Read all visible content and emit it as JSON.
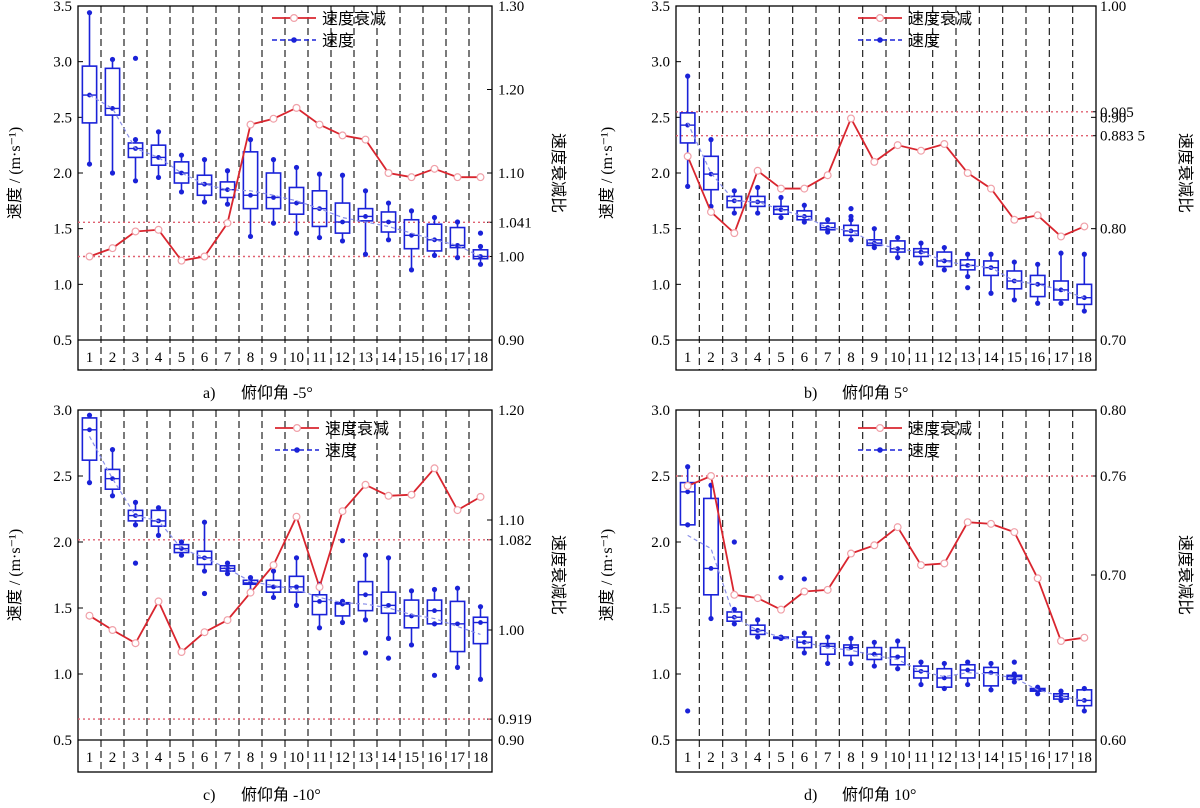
{
  "colors": {
    "decay": "#d9262f",
    "speed": "#1a22d8",
    "guide": "#e06070"
  },
  "legend": {
    "decay": "速度衰减",
    "speed": "速度"
  },
  "axis_labels": {
    "y_left": "速度 / (m·s⁻¹)",
    "y_right": "速度衰减比"
  },
  "chart_data": [
    {
      "type": "box+line",
      "caption_letter": "a)",
      "caption": "俯仰角 -5°",
      "categories": [
        "1",
        "2",
        "3",
        "4",
        "5",
        "6",
        "7",
        "8",
        "9",
        "10",
        "11",
        "12",
        "13",
        "14",
        "15",
        "16",
        "17",
        "18"
      ],
      "ylim_left": [
        0.5,
        3.5
      ],
      "yticks_left": [
        "0.5",
        "1.0",
        "1.5",
        "2.0",
        "2.5",
        "3.0",
        "3.5"
      ],
      "ylim_right": [
        0.9,
        1.3
      ],
      "yticks_right": [
        {
          "v": 0.9,
          "label": "0.90"
        },
        {
          "v": 1.0,
          "label": "1.00"
        },
        {
          "v": 1.041,
          "label": "1.041"
        },
        {
          "v": 1.1,
          "label": "1.10"
        },
        {
          "v": 1.2,
          "label": "1.20"
        },
        {
          "v": 1.3,
          "label": "1.30"
        }
      ],
      "ref_lines_right": [
        1.0,
        1.041
      ],
      "speed_boxes": [
        {
          "min": 2.08,
          "q1": 2.45,
          "med": 2.7,
          "q3": 2.96,
          "max": 3.44,
          "out": []
        },
        {
          "min": 2.0,
          "q1": 2.52,
          "med": 2.58,
          "q3": 2.94,
          "max": 3.02,
          "out": []
        },
        {
          "min": 1.93,
          "q1": 2.14,
          "med": 2.22,
          "q3": 2.27,
          "max": 2.3,
          "out": [
            3.03
          ]
        },
        {
          "min": 1.96,
          "q1": 2.07,
          "med": 2.14,
          "q3": 2.25,
          "max": 2.37,
          "out": []
        },
        {
          "min": 1.83,
          "q1": 1.91,
          "med": 2.0,
          "q3": 2.1,
          "max": 2.16,
          "out": []
        },
        {
          "min": 1.74,
          "q1": 1.8,
          "med": 1.9,
          "q3": 1.98,
          "max": 2.12,
          "out": []
        },
        {
          "min": 1.72,
          "q1": 1.78,
          "med": 1.85,
          "q3": 1.92,
          "max": 2.02,
          "out": []
        },
        {
          "min": 1.43,
          "q1": 1.68,
          "med": 1.8,
          "q3": 2.19,
          "max": 2.3,
          "out": []
        },
        {
          "min": 1.55,
          "q1": 1.68,
          "med": 1.78,
          "q3": 2.0,
          "max": 2.12,
          "out": []
        },
        {
          "min": 1.46,
          "q1": 1.63,
          "med": 1.73,
          "q3": 1.87,
          "max": 2.05,
          "out": []
        },
        {
          "min": 1.42,
          "q1": 1.52,
          "med": 1.68,
          "q3": 1.84,
          "max": 1.99,
          "out": []
        },
        {
          "min": 1.39,
          "q1": 1.46,
          "med": 1.56,
          "q3": 1.73,
          "max": 1.98,
          "out": []
        },
        {
          "min": 1.27,
          "q1": 1.57,
          "med": 1.61,
          "q3": 1.68,
          "max": 1.84,
          "out": []
        },
        {
          "min": 1.4,
          "q1": 1.47,
          "med": 1.56,
          "q3": 1.65,
          "max": 1.73,
          "out": []
        },
        {
          "min": 1.13,
          "q1": 1.32,
          "med": 1.44,
          "q3": 1.58,
          "max": 1.66,
          "out": []
        },
        {
          "min": 1.26,
          "q1": 1.3,
          "med": 1.4,
          "q3": 1.54,
          "max": 1.6,
          "out": []
        },
        {
          "min": 1.24,
          "q1": 1.33,
          "med": 1.35,
          "q3": 1.51,
          "max": 1.56,
          "out": []
        },
        {
          "min": 1.18,
          "q1": 1.23,
          "med": 1.25,
          "q3": 1.31,
          "max": 1.34,
          "out": [
            1.46
          ]
        }
      ],
      "speed_mean": [
        2.7,
        2.58,
        2.22,
        2.14,
        2.0,
        1.9,
        1.85,
        1.84,
        1.8,
        1.75,
        1.68,
        1.6,
        1.56,
        1.52,
        1.46,
        1.4,
        1.35,
        1.25
      ],
      "decay_ratio": [
        1.0,
        1.01,
        1.03,
        1.032,
        0.995,
        1.0,
        1.04,
        1.158,
        1.165,
        1.178,
        1.158,
        1.145,
        1.14,
        1.1,
        1.095,
        1.105,
        1.095,
        1.095
      ]
    },
    {
      "type": "box+line",
      "caption_letter": "b)",
      "caption": "俯仰角 5°",
      "categories": [
        "1",
        "2",
        "3",
        "4",
        "5",
        "6",
        "7",
        "8",
        "9",
        "10",
        "11",
        "12",
        "13",
        "14",
        "15",
        "16",
        "17",
        "18"
      ],
      "ylim_left": [
        0.5,
        3.5
      ],
      "yticks_left": [
        "0.5",
        "1.0",
        "1.5",
        "2.0",
        "2.5",
        "3.0",
        "3.5"
      ],
      "ylim_right": [
        0.7,
        1.0
      ],
      "yticks_right": [
        {
          "v": 0.7,
          "label": "0.70"
        },
        {
          "v": 0.8,
          "label": "0.80"
        },
        {
          "v": 0.8835,
          "label": "0.883 5"
        },
        {
          "v": 0.9,
          "label": "0.90"
        },
        {
          "v": 0.905,
          "label": "0.905"
        },
        {
          "v": 1.0,
          "label": "1.00"
        }
      ],
      "ref_lines_right": [
        0.8835,
        0.905
      ],
      "speed_boxes": [
        {
          "min": 1.88,
          "q1": 2.27,
          "med": 2.43,
          "q3": 2.54,
          "max": 2.87,
          "out": []
        },
        {
          "min": 1.7,
          "q1": 1.85,
          "med": 1.99,
          "q3": 2.15,
          "max": 2.3,
          "out": []
        },
        {
          "min": 1.64,
          "q1": 1.69,
          "med": 1.75,
          "q3": 1.79,
          "max": 1.84,
          "out": []
        },
        {
          "min": 1.64,
          "q1": 1.7,
          "med": 1.74,
          "q3": 1.79,
          "max": 1.87,
          "out": []
        },
        {
          "min": 1.6,
          "q1": 1.63,
          "med": 1.67,
          "q3": 1.7,
          "max": 1.78,
          "out": []
        },
        {
          "min": 1.56,
          "q1": 1.58,
          "med": 1.61,
          "q3": 1.66,
          "max": 1.71,
          "out": []
        },
        {
          "min": 1.47,
          "q1": 1.49,
          "med": 1.51,
          "q3": 1.55,
          "max": 1.58,
          "out": []
        },
        {
          "min": 1.4,
          "q1": 1.44,
          "med": 1.48,
          "q3": 1.53,
          "max": 1.58,
          "out": [
            1.68,
            1.61
          ]
        },
        {
          "min": 1.33,
          "q1": 1.35,
          "med": 1.37,
          "q3": 1.4,
          "max": 1.5,
          "out": []
        },
        {
          "min": 1.24,
          "q1": 1.29,
          "med": 1.32,
          "q3": 1.39,
          "max": 1.42,
          "out": []
        },
        {
          "min": 1.19,
          "q1": 1.25,
          "med": 1.29,
          "q3": 1.32,
          "max": 1.37,
          "out": []
        },
        {
          "min": 1.13,
          "q1": 1.16,
          "med": 1.21,
          "q3": 1.29,
          "max": 1.33,
          "out": []
        },
        {
          "min": 1.07,
          "q1": 1.13,
          "med": 1.17,
          "q3": 1.22,
          "max": 1.27,
          "out": [
            0.97
          ]
        },
        {
          "min": 0.92,
          "q1": 1.08,
          "med": 1.15,
          "q3": 1.21,
          "max": 1.27,
          "out": []
        },
        {
          "min": 0.86,
          "q1": 0.96,
          "med": 1.03,
          "q3": 1.12,
          "max": 1.2,
          "out": []
        },
        {
          "min": 0.83,
          "q1": 0.89,
          "med": 1.0,
          "q3": 1.08,
          "max": 1.18,
          "out": []
        },
        {
          "min": 0.83,
          "q1": 0.86,
          "med": 0.95,
          "q3": 1.03,
          "max": 1.28,
          "out": []
        },
        {
          "min": 0.76,
          "q1": 0.82,
          "med": 0.88,
          "q3": 1.0,
          "max": 1.27,
          "out": []
        }
      ],
      "speed_mean": [
        2.45,
        2.0,
        1.75,
        1.74,
        1.67,
        1.61,
        1.51,
        1.48,
        1.37,
        1.32,
        1.29,
        1.21,
        1.17,
        1.15,
        1.03,
        1.0,
        0.95,
        0.88
      ],
      "decay_ratio": [
        0.865,
        0.815,
        0.796,
        0.852,
        0.836,
        0.836,
        0.848,
        0.899,
        0.86,
        0.875,
        0.87,
        0.876,
        0.85,
        0.836,
        0.808,
        0.812,
        0.793,
        0.802
      ]
    },
    {
      "type": "box+line",
      "caption_letter": "c)",
      "caption": "俯仰角 -10°",
      "categories": [
        "1",
        "2",
        "3",
        "4",
        "5",
        "6",
        "7",
        "8",
        "9",
        "10",
        "11",
        "12",
        "13",
        "14",
        "15",
        "16",
        "17",
        "18"
      ],
      "ylim_left": [
        0.5,
        3.0
      ],
      "yticks_left": [
        "0.5",
        "1.0",
        "1.5",
        "2.0",
        "2.5",
        "3.0"
      ],
      "ylim_right": [
        0.9,
        1.2
      ],
      "yticks_right": [
        {
          "v": 0.9,
          "label": "0.90"
        },
        {
          "v": 0.919,
          "label": "0.919"
        },
        {
          "v": 1.0,
          "label": "1.00"
        },
        {
          "v": 1.082,
          "label": "1.082"
        },
        {
          "v": 1.1,
          "label": "1.10"
        },
        {
          "v": 1.2,
          "label": "1.20"
        }
      ],
      "ref_lines_right": [
        0.919,
        1.082
      ],
      "speed_boxes": [
        {
          "min": 2.45,
          "q1": 2.62,
          "med": 2.85,
          "q3": 2.94,
          "max": 2.96,
          "out": []
        },
        {
          "min": 2.35,
          "q1": 2.4,
          "med": 2.48,
          "q3": 2.55,
          "max": 2.7,
          "out": []
        },
        {
          "min": 2.13,
          "q1": 2.16,
          "med": 2.2,
          "q3": 2.24,
          "max": 2.3,
          "out": [
            1.84
          ]
        },
        {
          "min": 2.05,
          "q1": 2.12,
          "med": 2.16,
          "q3": 2.24,
          "max": 2.26,
          "out": []
        },
        {
          "min": 1.9,
          "q1": 1.92,
          "med": 1.95,
          "q3": 1.98,
          "max": 2.0,
          "out": []
        },
        {
          "min": 1.78,
          "q1": 1.83,
          "med": 1.88,
          "q3": 1.93,
          "max": 2.15,
          "out": [
            1.61
          ]
        },
        {
          "min": 1.76,
          "q1": 1.78,
          "med": 1.8,
          "q3": 1.82,
          "max": 1.84,
          "out": []
        },
        {
          "min": 1.63,
          "q1": 1.68,
          "med": 1.69,
          "q3": 1.71,
          "max": 1.73,
          "out": []
        },
        {
          "min": 1.58,
          "q1": 1.62,
          "med": 1.66,
          "q3": 1.71,
          "max": 1.78,
          "out": []
        },
        {
          "min": 1.52,
          "q1": 1.62,
          "med": 1.66,
          "q3": 1.74,
          "max": 1.88,
          "out": []
        },
        {
          "min": 1.35,
          "q1": 1.45,
          "med": 1.55,
          "q3": 1.6,
          "max": 1.68,
          "out": []
        },
        {
          "min": 1.39,
          "q1": 1.44,
          "med": 1.53,
          "q3": 1.54,
          "max": 1.55,
          "out": [
            2.01
          ]
        },
        {
          "min": 1.41,
          "q1": 1.48,
          "med": 1.6,
          "q3": 1.7,
          "max": 1.9,
          "out": [
            1.16
          ]
        },
        {
          "min": 1.27,
          "q1": 1.46,
          "med": 1.52,
          "q3": 1.62,
          "max": 1.88,
          "out": [
            1.12
          ]
        },
        {
          "min": 1.22,
          "q1": 1.35,
          "med": 1.44,
          "q3": 1.56,
          "max": 1.63,
          "out": []
        },
        {
          "min": 1.38,
          "q1": 1.38,
          "med": 1.48,
          "q3": 1.56,
          "max": 1.64,
          "out": [
            0.99
          ]
        },
        {
          "min": 1.05,
          "q1": 1.17,
          "med": 1.38,
          "q3": 1.55,
          "max": 1.65,
          "out": []
        },
        {
          "min": 0.96,
          "q1": 1.23,
          "med": 1.39,
          "q3": 1.43,
          "max": 1.51,
          "out": []
        }
      ],
      "speed_mean": [
        2.8,
        2.48,
        2.2,
        2.16,
        1.95,
        1.88,
        1.8,
        1.7,
        1.67,
        1.64,
        1.58,
        1.54,
        1.53,
        1.5,
        1.45,
        1.42,
        1.36,
        1.3
      ],
      "decay_ratio": [
        1.013,
        1.0,
        0.988,
        1.026,
        0.98,
        0.998,
        1.009,
        1.034,
        1.059,
        1.103,
        1.039,
        1.108,
        1.132,
        1.122,
        1.123,
        1.147,
        1.109,
        1.121
      ]
    },
    {
      "type": "box+line",
      "caption_letter": "d)",
      "caption": "俯仰角 10°",
      "categories": [
        "1",
        "2",
        "3",
        "4",
        "5",
        "6",
        "7",
        "8",
        "9",
        "10",
        "11",
        "12",
        "13",
        "14",
        "15",
        "16",
        "17",
        "18"
      ],
      "ylim_left": [
        0.5,
        3.0
      ],
      "yticks_left": [
        "0.5",
        "1.0",
        "1.5",
        "2.0",
        "2.5",
        "3.0"
      ],
      "ylim_right": [
        0.6,
        0.8
      ],
      "yticks_right": [
        {
          "v": 0.6,
          "label": "0.60"
        },
        {
          "v": 0.7,
          "label": "0.70"
        },
        {
          "v": 0.76,
          "label": "0.76"
        },
        {
          "v": 0.8,
          "label": "0.80"
        }
      ],
      "ref_lines_right": [
        0.76
      ],
      "speed_boxes": [
        {
          "min": 2.13,
          "q1": 2.13,
          "med": 2.38,
          "q3": 2.45,
          "max": 2.57,
          "out": [
            0.72
          ]
        },
        {
          "min": 1.42,
          "q1": 1.6,
          "med": 1.8,
          "q3": 2.33,
          "max": 2.43,
          "out": []
        },
        {
          "min": 1.38,
          "q1": 1.4,
          "med": 1.43,
          "q3": 1.47,
          "max": 1.49,
          "out": [
            2.0
          ]
        },
        {
          "min": 1.28,
          "q1": 1.3,
          "med": 1.33,
          "q3": 1.37,
          "max": 1.41,
          "out": []
        },
        {
          "min": 1.27,
          "q1": 1.27,
          "med": 1.27,
          "q3": 1.28,
          "max": 1.28,
          "out": [
            1.73
          ]
        },
        {
          "min": 1.16,
          "q1": 1.2,
          "med": 1.24,
          "q3": 1.28,
          "max": 1.31,
          "out": [
            1.72
          ]
        },
        {
          "min": 1.08,
          "q1": 1.15,
          "med": 1.21,
          "q3": 1.23,
          "max": 1.28,
          "out": []
        },
        {
          "min": 1.08,
          "q1": 1.14,
          "med": 1.2,
          "q3": 1.22,
          "max": 1.27,
          "out": []
        },
        {
          "min": 1.06,
          "q1": 1.11,
          "med": 1.15,
          "q3": 1.2,
          "max": 1.24,
          "out": []
        },
        {
          "min": 1.04,
          "q1": 1.07,
          "med": 1.13,
          "q3": 1.2,
          "max": 1.25,
          "out": []
        },
        {
          "min": 0.92,
          "q1": 0.97,
          "med": 1.02,
          "q3": 1.06,
          "max": 1.09,
          "out": []
        },
        {
          "min": 0.89,
          "q1": 0.9,
          "med": 0.97,
          "q3": 1.04,
          "max": 1.08,
          "out": []
        },
        {
          "min": 0.92,
          "q1": 0.97,
          "med": 1.03,
          "q3": 1.07,
          "max": 1.09,
          "out": []
        },
        {
          "min": 0.88,
          "q1": 0.91,
          "med": 1.01,
          "q3": 1.05,
          "max": 1.08,
          "out": []
        },
        {
          "min": 0.94,
          "q1": 0.96,
          "med": 0.98,
          "q3": 0.99,
          "max": 1.0,
          "out": [
            1.09
          ]
        },
        {
          "min": 0.85,
          "q1": 0.87,
          "med": 0.88,
          "q3": 0.89,
          "max": 0.9,
          "out": []
        },
        {
          "min": 0.8,
          "q1": 0.81,
          "med": 0.83,
          "q3": 0.85,
          "max": 0.87,
          "out": []
        },
        {
          "min": 0.72,
          "q1": 0.76,
          "med": 0.8,
          "q3": 0.88,
          "max": 0.89,
          "out": []
        }
      ],
      "speed_mean": [
        2.05,
        1.95,
        1.43,
        1.33,
        1.28,
        1.24,
        1.2,
        1.18,
        1.14,
        1.11,
        1.02,
        0.98,
        1.01,
        1.0,
        0.97,
        0.88,
        0.83,
        0.8
      ],
      "decay_ratio": [
        0.754,
        0.76,
        0.688,
        0.686,
        0.679,
        0.69,
        0.691,
        0.713,
        0.718,
        0.729,
        0.706,
        0.707,
        0.732,
        0.731,
        0.726,
        0.698,
        0.66,
        0.662
      ]
    }
  ]
}
